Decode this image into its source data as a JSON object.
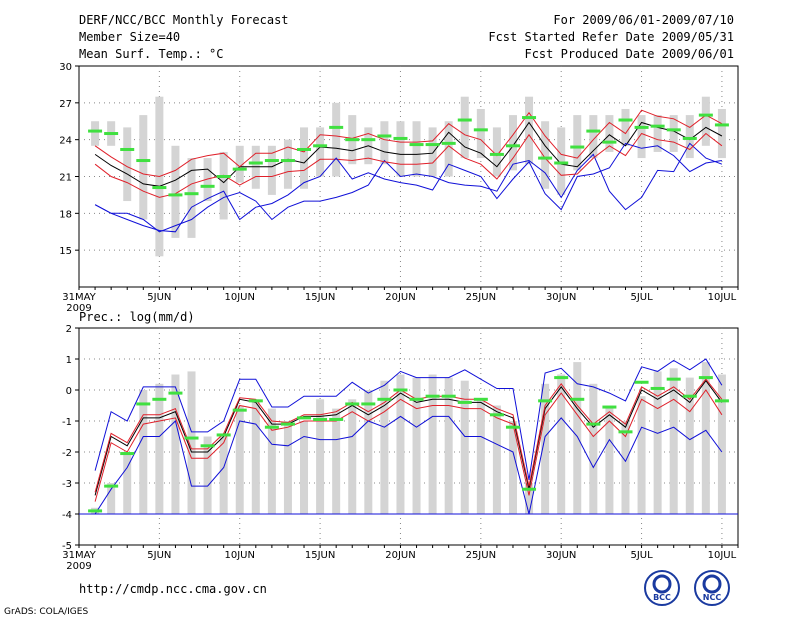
{
  "header": {
    "title": "DERF/NCC/BCC Monthly Forecast",
    "member_size": "Member Size=40",
    "variable": "Mean Surf. Temp.: °C",
    "forecast_period": "For 2009/06/01-2009/07/10",
    "started_refer": "Fcst Started Refer Date 2009/05/31",
    "produced": "Fcst Produced Date 2009/06/01"
  },
  "footer": {
    "url": "http://cmdp.ncc.cma.gov.cn",
    "grads": "GrADS: COLA/IGES",
    "logo_bcc_text": "BCC",
    "logo_ncc_text": "NCC"
  },
  "colors": {
    "ens_bar": "#d4d4d4",
    "median": "#40e040",
    "mean": "#000000",
    "spread": "#e0202a",
    "extreme": "#1010d8",
    "grid": "#888888"
  },
  "chart_data": [
    {
      "type": "line",
      "title": "Mean Surf. Temp.: °C",
      "ylabel": "°C",
      "ylim": [
        12,
        30
      ],
      "yticks": [
        15,
        18,
        21,
        24,
        27,
        30
      ],
      "xtick_labels": [
        {
          "day": 0,
          "label": "31MAY"
        },
        {
          "day": 5,
          "label": "5JUN"
        },
        {
          "day": 10,
          "label": "10JUN"
        },
        {
          "day": 15,
          "label": "15JUN"
        },
        {
          "day": 20,
          "label": "20JUN"
        },
        {
          "day": 25,
          "label": "25JUN"
        },
        {
          "day": 30,
          "label": "30JUN"
        },
        {
          "day": 35,
          "label": "5JUL"
        },
        {
          "day": 40,
          "label": "10JUL"
        }
      ],
      "year_label": "2009",
      "days": [
        1,
        2,
        3,
        4,
        5,
        6,
        7,
        8,
        9,
        10,
        11,
        12,
        13,
        14,
        15,
        16,
        17,
        18,
        19,
        20,
        21,
        22,
        23,
        24,
        25,
        26,
        27,
        28,
        29,
        30,
        31,
        32,
        33,
        34,
        35,
        36,
        37,
        38,
        39,
        40
      ],
      "ensemble_range": {
        "low": [
          23.5,
          23.5,
          19,
          17.5,
          14.5,
          16,
          16,
          19,
          17.5,
          20.5,
          20,
          19.5,
          20,
          20,
          21,
          21,
          22,
          22,
          22,
          21,
          21,
          21,
          21,
          22.5,
          22.5,
          21,
          21.5,
          22,
          20,
          19.5,
          21.5,
          22.5,
          23,
          23.5,
          22.5,
          23,
          23,
          22.5,
          23.5,
          22.5
        ],
        "high": [
          25.5,
          25.5,
          25,
          26,
          27.5,
          23.5,
          22.5,
          22.5,
          23,
          23.5,
          23.5,
          23.5,
          24,
          25,
          25,
          27,
          26,
          25,
          25.5,
          25.5,
          25.5,
          25,
          25.5,
          27.5,
          26.5,
          25,
          26,
          27.5,
          25.5,
          25,
          26,
          26,
          26,
          26.5,
          26,
          26,
          26,
          26,
          27.5,
          26.5
        ]
      },
      "series": [
        {
          "name": "median",
          "values": [
            24.7,
            24.5,
            23.2,
            22.3,
            20.1,
            19.5,
            19.6,
            20.2,
            21.0,
            21.6,
            22.1,
            22.3,
            22.3,
            23.2,
            23.5,
            25.0,
            24.0,
            24.0,
            24.3,
            24.1,
            23.6,
            23.6,
            23.7,
            25.6,
            24.8,
            22.8,
            23.5,
            25.8,
            22.5,
            22.1,
            23.4,
            24.7,
            23.8,
            25.6,
            25.0,
            25.1,
            24.8,
            24.1,
            26.0,
            25.2
          ]
        },
        {
          "name": "max",
          "values": [
            18.7,
            18.0,
            18.0,
            17.5,
            16.5,
            17.0,
            17.5,
            18.5,
            19.3,
            19.7,
            19.0,
            17.5,
            18.5,
            19.0,
            19.0,
            19.3,
            19.7,
            20.3,
            22.3,
            21.0,
            21.2,
            21.0,
            20.5,
            20.3,
            20.2,
            19.8,
            22.0,
            22.3,
            21.3,
            19.3,
            21.5,
            22.8,
            19.8,
            18.3,
            19.3,
            21.5,
            21.4,
            23.7,
            22.5,
            22.0
          ]
        },
        {
          "name": "mean",
          "values": [
            22.8,
            21.9,
            21.2,
            20.4,
            20.2,
            20.7,
            21.5,
            21.6,
            20.5,
            21.8,
            21.8,
            21.8,
            22.4,
            22.1,
            23.4,
            23.3,
            23.1,
            23.5,
            23.0,
            22.8,
            22.8,
            22.9,
            24.6,
            23.4,
            22.9,
            21.8,
            23.5,
            25.4,
            23.5,
            22.0,
            21.8,
            23.1,
            24.4,
            23.5,
            25.4,
            25.0,
            24.7,
            24.0,
            25.0,
            24.3
          ]
        },
        {
          "name": "upper_spread",
          "values": [
            23.5,
            22.6,
            21.8,
            21.2,
            21.0,
            21.5,
            22.4,
            22.7,
            22.9,
            21.8,
            22.9,
            22.9,
            23.4,
            23.0,
            24.4,
            24.3,
            24.1,
            24.5,
            24.0,
            23.8,
            23.8,
            23.9,
            25.3,
            24.4,
            24.0,
            22.7,
            24.4,
            26.2,
            24.3,
            22.8,
            22.5,
            24.0,
            25.4,
            24.5,
            26.4,
            25.9,
            25.7,
            25.0,
            26.0,
            25.3
          ]
        },
        {
          "name": "lower_spread",
          "values": [
            22.0,
            21.0,
            20.5,
            19.8,
            19.3,
            19.6,
            20.4,
            20.8,
            21.1,
            20.3,
            21.0,
            21.0,
            21.4,
            21.5,
            22.4,
            22.4,
            22.3,
            22.5,
            22.2,
            22.0,
            22.0,
            22.1,
            23.5,
            22.5,
            22.0,
            20.8,
            22.5,
            24.4,
            22.5,
            21.1,
            21.2,
            22.5,
            23.5,
            22.7,
            24.5,
            24.0,
            23.8,
            23.2,
            24.5,
            23.5
          ]
        },
        {
          "name": "min",
          "values": [
            18.7,
            18.0,
            17.5,
            17.0,
            16.6,
            16.5,
            18.5,
            19.2,
            19.8,
            17.5,
            18.5,
            18.8,
            19.5,
            20.5,
            21.0,
            22.5,
            20.8,
            21.3,
            20.8,
            20.5,
            20.3,
            19.9,
            22.0,
            21.5,
            21.0,
            19.2,
            20.8,
            22.2,
            19.6,
            18.3,
            21.0,
            21.2,
            21.7,
            23.7,
            23.3,
            23.5,
            22.7,
            21.4,
            22.1,
            22.3
          ]
        }
      ]
    },
    {
      "type": "line",
      "title": "Prec.: log(mm/d)",
      "ylabel": "log(mm/d)",
      "ylim": [
        -5,
        2
      ],
      "yticks": [
        -5,
        -4,
        -3,
        -2,
        -1,
        0,
        1,
        2
      ],
      "xtick_labels": [
        {
          "day": 0,
          "label": "31MAY"
        },
        {
          "day": 5,
          "label": "5JUN"
        },
        {
          "day": 10,
          "label": "10JUN"
        },
        {
          "day": 15,
          "label": "15JUN"
        },
        {
          "day": 20,
          "label": "20JUN"
        },
        {
          "day": 25,
          "label": "25JUN"
        },
        {
          "day": 30,
          "label": "30JUN"
        },
        {
          "day": 35,
          "label": "5JUL"
        },
        {
          "day": 40,
          "label": "10JUL"
        }
      ],
      "year_label": "2009",
      "days": [
        1,
        2,
        3,
        4,
        5,
        6,
        7,
        8,
        9,
        10,
        11,
        12,
        13,
        14,
        15,
        16,
        17,
        18,
        19,
        20,
        21,
        22,
        23,
        24,
        25,
        26,
        27,
        28,
        29,
        30,
        31,
        32,
        33,
        34,
        35,
        36,
        37,
        38,
        39,
        40
      ],
      "ensemble_range": {
        "low": [
          -4,
          -4,
          -4,
          -4,
          -4,
          -4,
          -4,
          -4,
          -4,
          -4,
          -4,
          -4,
          -4,
          -4,
          -4,
          -4,
          -4,
          -4,
          -4,
          -4,
          -4,
          -4,
          -4,
          -4,
          -4,
          -4,
          -4,
          -4,
          -4,
          -4,
          -4,
          -4,
          -4,
          -4,
          -4,
          -4,
          -4,
          -4,
          -4,
          -4
        ],
        "high": [
          -3.8,
          -3.0,
          -2.0,
          0.0,
          0.2,
          0.5,
          0.6,
          -1.5,
          -1.5,
          -0.5,
          -0.3,
          -0.6,
          -1.0,
          -1.0,
          -0.3,
          -0.6,
          -0.3,
          0.0,
          0.3,
          0.5,
          0.4,
          0.5,
          0.4,
          0.3,
          -0.3,
          -0.5,
          -1.0,
          -3.0,
          0.2,
          0.5,
          0.9,
          0.2,
          -0.5,
          -1.0,
          -0.2,
          0.6,
          0.7,
          0.4,
          0.9,
          0.5
        ]
      },
      "series": [
        {
          "name": "median",
          "values": [
            -3.9,
            -3.1,
            -2.05,
            -0.45,
            -0.3,
            -0.1,
            -1.55,
            -1.8,
            -1.45,
            -0.65,
            -0.35,
            -1.2,
            -1.1,
            -0.9,
            -0.95,
            -0.95,
            -0.45,
            -0.45,
            -0.3,
            0.0,
            -0.3,
            -0.2,
            -0.2,
            -0.4,
            -0.3,
            -0.8,
            -1.2,
            -3.2,
            -0.35,
            0.4,
            -0.3,
            -1.1,
            -0.55,
            -1.35,
            0.25,
            0.05,
            0.35,
            -0.2,
            0.4,
            -0.35
          ]
        },
        {
          "name": "max",
          "values": [
            -2.6,
            -0.7,
            -1.0,
            0.1,
            0.1,
            0.1,
            -1.35,
            -1.35,
            -1.0,
            0.35,
            0.35,
            -0.55,
            -0.55,
            -0.2,
            -0.2,
            -0.2,
            0.25,
            -0.1,
            0.15,
            0.6,
            0.4,
            0.4,
            0.4,
            0.65,
            0.35,
            0.05,
            0.05,
            -2.9,
            0.55,
            0.7,
            0.2,
            0.1,
            -0.1,
            -0.35,
            0.75,
            0.6,
            0.95,
            0.65,
            1.0,
            0.15
          ]
        },
        {
          "name": "mean",
          "values": [
            -3.4,
            -1.5,
            -1.8,
            -0.9,
            -0.9,
            -0.7,
            -2.0,
            -2.0,
            -1.5,
            -0.3,
            -0.4,
            -1.1,
            -1.1,
            -0.85,
            -0.85,
            -0.8,
            -0.5,
            -0.8,
            -0.5,
            -0.1,
            -0.4,
            -0.3,
            -0.3,
            -0.4,
            -0.4,
            -0.7,
            -0.9,
            -3.2,
            -0.6,
            0.1,
            -0.6,
            -1.2,
            -0.8,
            -1.2,
            0.0,
            -0.3,
            0.0,
            -0.4,
            0.3,
            -0.4
          ]
        },
        {
          "name": "upper_spread",
          "values": [
            -3.3,
            -1.4,
            -1.7,
            -0.8,
            -0.8,
            -0.6,
            -1.9,
            -1.9,
            -1.4,
            -0.25,
            -0.3,
            -1.0,
            -1.05,
            -0.8,
            -0.8,
            -0.7,
            -0.4,
            -0.7,
            -0.4,
            0.0,
            -0.3,
            -0.2,
            -0.2,
            -0.3,
            -0.3,
            -0.6,
            -0.8,
            -3.1,
            -0.5,
            0.2,
            -0.5,
            -1.1,
            -0.7,
            -1.1,
            0.1,
            -0.2,
            0.1,
            -0.3,
            0.35,
            -0.3
          ]
        },
        {
          "name": "lower_spread",
          "values": [
            -3.6,
            -1.7,
            -2.0,
            -1.1,
            -1.0,
            -0.9,
            -2.2,
            -2.2,
            -1.7,
            -0.5,
            -0.6,
            -1.3,
            -1.2,
            -1.0,
            -1.0,
            -1.0,
            -0.7,
            -1.0,
            -0.7,
            -0.3,
            -0.6,
            -0.5,
            -0.5,
            -0.6,
            -0.6,
            -0.9,
            -1.1,
            -3.4,
            -0.8,
            -0.1,
            -0.8,
            -1.5,
            -1.0,
            -1.5,
            -0.3,
            -0.6,
            -0.3,
            -0.7,
            0.0,
            -0.8
          ]
        },
        {
          "name": "min",
          "values": [
            -4.0,
            -3.2,
            -2.5,
            -1.5,
            -1.5,
            -1.0,
            -3.1,
            -3.1,
            -2.5,
            -1.0,
            -1.1,
            -1.75,
            -1.8,
            -1.5,
            -1.6,
            -1.6,
            -1.5,
            -1.0,
            -1.2,
            -0.85,
            -1.2,
            -0.85,
            -0.85,
            -1.5,
            -1.5,
            -1.75,
            -2.0,
            -4.0,
            -1.5,
            -0.9,
            -1.5,
            -2.5,
            -1.6,
            -2.3,
            -1.2,
            -1.4,
            -1.2,
            -1.6,
            -1.3,
            -2.0
          ]
        }
      ]
    }
  ]
}
